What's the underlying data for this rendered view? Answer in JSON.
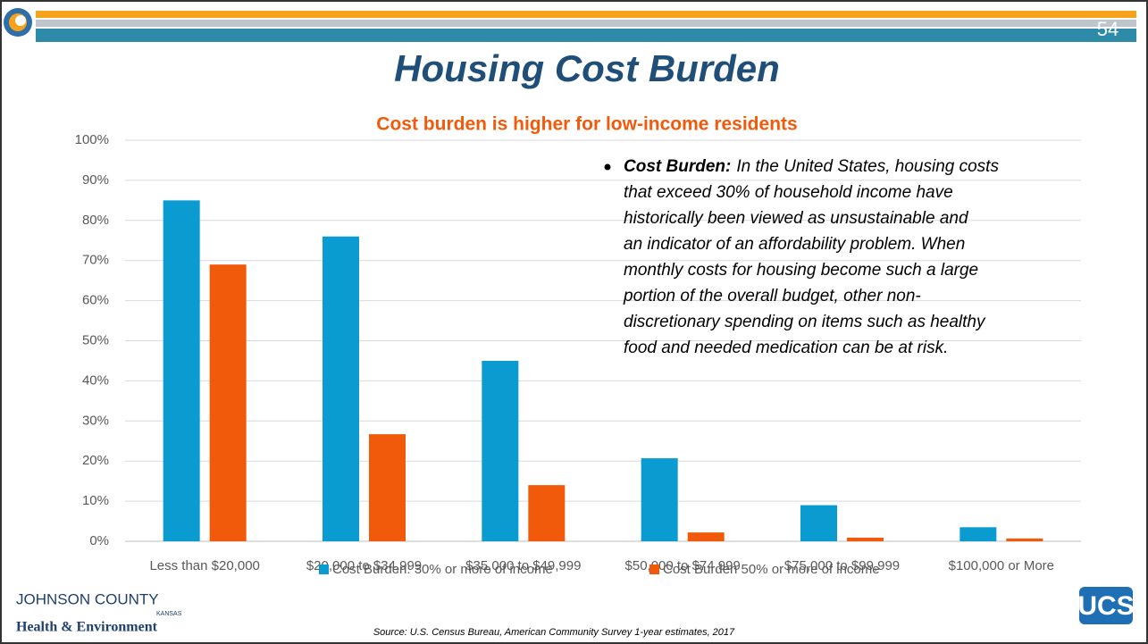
{
  "slide_number": "54",
  "title": "Housing Cost Burden",
  "chart_data": {
    "type": "bar",
    "title": "Cost burden is higher for low-income residents",
    "categories": [
      "Less than $20,000",
      "$20,000 to $34,999",
      "$35,000 to $49,999",
      "$50,000 to $74,999",
      "$75,000 to $99,999",
      "$100,000 or More"
    ],
    "series": [
      {
        "name": "Cost Burden: 30% or more of income",
        "color": "#0a9bd0",
        "values": [
          85,
          76,
          45,
          20.7,
          9,
          3.5
        ]
      },
      {
        "name": "Cost Burden 50% or more of income",
        "color": "#f05a0a",
        "values": [
          69,
          26.7,
          14,
          2.2,
          0.9,
          0.7
        ]
      }
    ],
    "ylim": [
      0,
      100
    ],
    "yticks": [
      {
        "value": 0,
        "label": "0%"
      },
      {
        "value": 10,
        "label": "10%"
      },
      {
        "value": 20,
        "label": "20%"
      },
      {
        "value": 30,
        "label": "30%"
      },
      {
        "value": 40,
        "label": "40%"
      },
      {
        "value": 50,
        "label": "50%"
      },
      {
        "value": 60,
        "label": "60%"
      },
      {
        "value": 70,
        "label": "70%"
      },
      {
        "value": 80,
        "label": "80%"
      },
      {
        "value": 90,
        "label": "90%"
      },
      {
        "value": 100,
        "label": "100%"
      }
    ],
    "grid": true,
    "legend": "bottom"
  },
  "annotation": {
    "label": "Cost Burden:",
    "lines": [
      "In the United States, housing costs",
      "that exceed 30% of household income have",
      "historically been viewed as unsustainable and",
      "an indicator of an affordability problem. When",
      "monthly costs for housing become such a large",
      "portion of the overall budget, other non-",
      "discretionary spending on items such as healthy",
      "food and needed medication can be at risk."
    ]
  },
  "source": "Source: U.S. Census Bureau, American Community Survey 1-year estimates, 2017",
  "logos": {
    "county": "JOHNSON COUNTY",
    "state": "KANSAS",
    "department": "Health & Environment",
    "partner": "UCS"
  }
}
